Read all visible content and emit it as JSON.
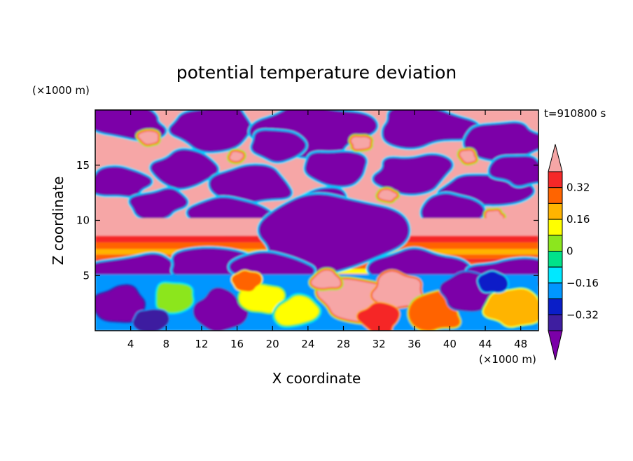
{
  "chart_data": {
    "type": "heatmap",
    "title": "potential temperature deviation",
    "xlabel": "X coordinate",
    "ylabel": "Z coordinate",
    "x_unit": "(×1000 m)",
    "y_unit": "(×1000 m)",
    "time_label": "t=910800 s",
    "xlim": [
      0,
      50
    ],
    "ylim": [
      0,
      20
    ],
    "x_ticks": [
      4,
      8,
      12,
      16,
      20,
      24,
      28,
      32,
      36,
      40,
      44,
      48
    ],
    "y_ticks": [
      5,
      10,
      15
    ],
    "colorbar": {
      "levels": [
        -0.4,
        -0.32,
        -0.24,
        -0.16,
        -0.08,
        0,
        0.08,
        0.16,
        0.24,
        0.32,
        0.4
      ],
      "labeled_levels": [
        0.32,
        0.16,
        0,
        -0.16,
        -0.32
      ],
      "labels": [
        "0.32",
        "0.16",
        "0",
        "−0.16",
        "−0.32"
      ],
      "colors": [
        "#7b00a8",
        "#3e1ea0",
        "#0a1ec8",
        "#0096ff",
        "#00e8ff",
        "#00e28a",
        "#8ce61e",
        "#ffff00",
        "#ffb400",
        "#ff6400",
        "#f52828",
        "#f6a6a6"
      ],
      "extend": "both"
    },
    "field_regions": [
      {
        "zone": "upper layer",
        "z_range": [
          10,
          20
        ],
        "pattern": "alternating large patches of strong positive (>0.4) and strong negative (<-0.4) values with sharp gradient fringes"
      },
      {
        "zone": "stable band",
        "z_range": [
          6,
          8.5
        ],
        "pattern": "horizontal bands of 0.16 to 0.4"
      },
      {
        "zone": "lower layer",
        "z_range": [
          0,
          5.5
        ],
        "pattern": "turbulent eddies; mostly negative on left (x<24), strongly positive plume near x 26-38"
      }
    ]
  }
}
